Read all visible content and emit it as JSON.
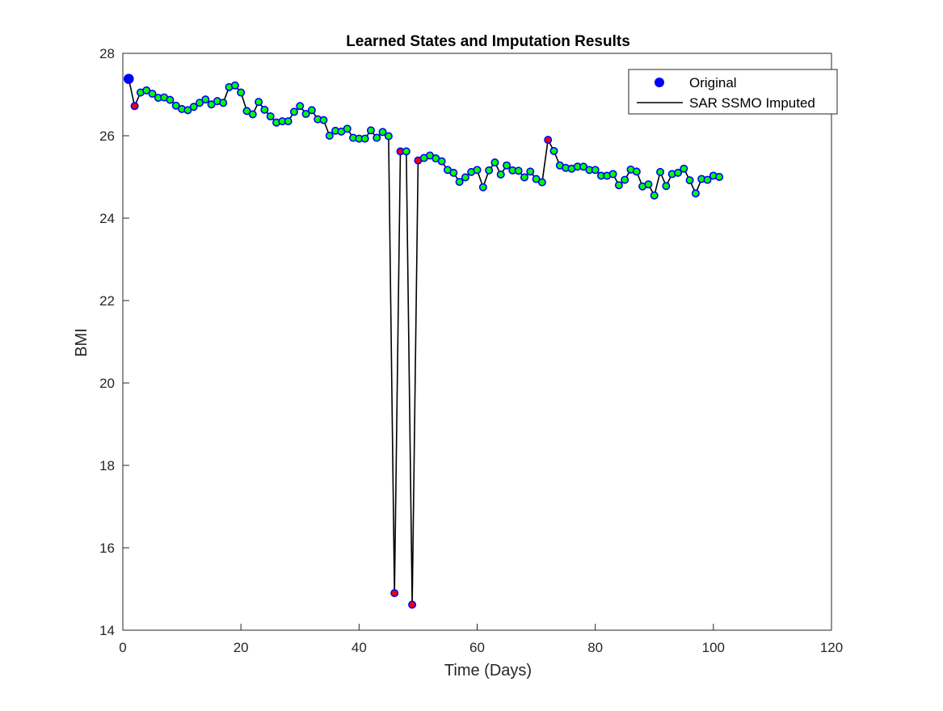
{
  "chart_data": {
    "type": "line",
    "title": "Learned States and Imputation Results",
    "xlabel": "Time (Days)",
    "ylabel": "BMI",
    "xlim": [
      0,
      120
    ],
    "ylim": [
      14,
      28
    ],
    "xticks": [
      0,
      20,
      40,
      60,
      80,
      100,
      120
    ],
    "yticks": [
      14,
      16,
      18,
      20,
      22,
      24,
      26,
      28
    ],
    "grid": false,
    "legend_position": "top-right",
    "series": [
      {
        "name": "Original",
        "marker": "circle",
        "color": "#0000ff",
        "x": [
          1,
          2,
          3,
          4,
          5,
          6,
          7,
          8,
          9,
          10,
          11,
          12,
          13,
          14,
          15,
          16,
          17,
          18,
          19,
          20,
          21,
          22,
          23,
          24,
          25,
          26,
          27,
          28,
          29,
          30,
          31,
          32,
          33,
          34,
          35,
          36,
          37,
          38,
          39,
          40,
          41,
          42,
          43,
          44,
          45,
          46,
          47,
          48,
          49,
          50,
          51,
          52,
          53,
          54,
          55,
          56,
          57,
          58,
          59,
          60,
          61,
          62,
          63,
          64,
          65,
          66,
          67,
          68,
          69,
          70,
          71,
          72,
          73,
          74,
          75,
          76,
          77,
          78,
          79,
          80,
          81,
          82,
          83,
          84,
          85,
          86,
          87,
          88,
          89,
          90,
          91,
          92,
          93,
          94,
          95,
          96,
          97,
          98,
          99,
          100,
          101
        ],
        "values": [
          27.38,
          26.72,
          27.05,
          27.1,
          27.02,
          26.92,
          26.93,
          26.87,
          26.73,
          26.65,
          26.62,
          26.7,
          26.8,
          26.88,
          26.76,
          26.84,
          26.8,
          27.18,
          27.22,
          27.05,
          26.6,
          26.52,
          26.82,
          26.63,
          26.47,
          26.32,
          26.35,
          26.35,
          26.58,
          26.72,
          26.53,
          26.62,
          26.4,
          26.38,
          26.0,
          26.12,
          26.1,
          26.17,
          25.95,
          25.93,
          25.93,
          26.13,
          25.95,
          26.09,
          25.99,
          14.9,
          25.62,
          25.62,
          14.62,
          25.4,
          25.46,
          25.52,
          25.45,
          25.38,
          25.17,
          25.1,
          24.88,
          24.99,
          25.12,
          25.17,
          24.75,
          25.16,
          25.35,
          25.06,
          25.28,
          25.16,
          25.15,
          24.99,
          25.13,
          24.95,
          24.87,
          25.9,
          25.63,
          25.28,
          25.22,
          25.2,
          25.25,
          25.25,
          25.17,
          25.17,
          25.03,
          25.03,
          25.07,
          24.8,
          24.93,
          25.18,
          25.13,
          24.77,
          24.82,
          24.55,
          25.12,
          24.78,
          25.07,
          25.1,
          25.2,
          24.92,
          24.6,
          24.95,
          24.93,
          25.03,
          25.0
        ]
      },
      {
        "name": "SAR SSMO Imputed",
        "marker": "none",
        "color": "#000000",
        "x": [
          1,
          2,
          3,
          4,
          5,
          6,
          7,
          8,
          9,
          10,
          11,
          12,
          13,
          14,
          15,
          16,
          17,
          18,
          19,
          20,
          21,
          22,
          23,
          24,
          25,
          26,
          27,
          28,
          29,
          30,
          31,
          32,
          33,
          34,
          35,
          36,
          37,
          38,
          39,
          40,
          41,
          42,
          43,
          44,
          45,
          46,
          47,
          48,
          49,
          50,
          51,
          52,
          53,
          54,
          55,
          56,
          57,
          58,
          59,
          60,
          61,
          62,
          63,
          64,
          65,
          66,
          67,
          68,
          69,
          70,
          71,
          72,
          73,
          74,
          75,
          76,
          77,
          78,
          79,
          80,
          81,
          82,
          83,
          84,
          85,
          86,
          87,
          88,
          89,
          90,
          91,
          92,
          93,
          94,
          95,
          96,
          97,
          98,
          99,
          100,
          101
        ],
        "values": [
          27.38,
          26.72,
          27.05,
          27.1,
          27.02,
          26.92,
          26.93,
          26.87,
          26.73,
          26.65,
          26.62,
          26.7,
          26.8,
          26.88,
          26.76,
          26.84,
          26.8,
          27.18,
          27.22,
          27.05,
          26.6,
          26.52,
          26.82,
          26.63,
          26.47,
          26.32,
          26.35,
          26.35,
          26.58,
          26.72,
          26.53,
          26.62,
          26.4,
          26.38,
          26.0,
          26.12,
          26.1,
          26.17,
          25.95,
          25.93,
          25.93,
          26.13,
          25.95,
          26.09,
          25.99,
          14.9,
          25.62,
          25.62,
          14.62,
          25.4,
          25.46,
          25.52,
          25.45,
          25.38,
          25.17,
          25.1,
          24.88,
          24.99,
          25.12,
          25.17,
          24.75,
          25.16,
          25.35,
          25.06,
          25.28,
          25.16,
          25.15,
          24.99,
          25.13,
          24.95,
          24.87,
          25.9,
          25.63,
          25.28,
          25.22,
          25.2,
          25.25,
          25.25,
          25.17,
          25.17,
          25.03,
          25.03,
          25.07,
          24.8,
          24.93,
          25.18,
          25.13,
          24.77,
          24.82,
          24.55,
          25.12,
          24.78,
          25.07,
          25.1,
          25.2,
          24.92,
          24.6,
          24.95,
          24.93,
          25.03,
          25.0
        ]
      }
    ],
    "point_fill_colors": {
      "learned": "#00ff00",
      "imputed": "#ff0000",
      "original_only": "#0000ff"
    },
    "imputed_x": [
      2,
      46,
      47,
      49,
      50,
      72
    ],
    "original_only_x": [
      1
    ]
  }
}
